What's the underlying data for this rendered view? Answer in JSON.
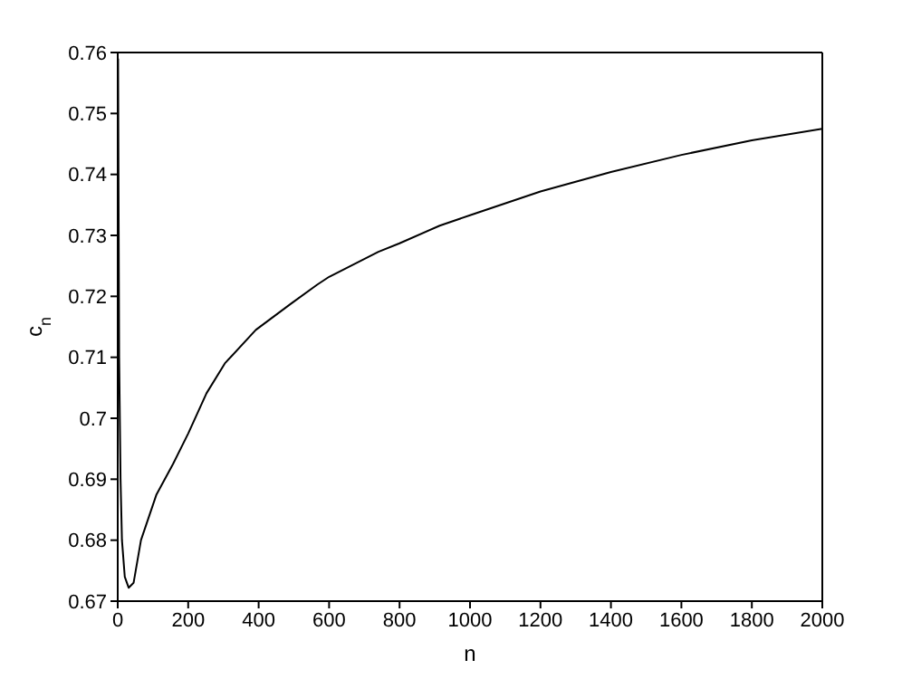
{
  "chart_data": {
    "type": "line",
    "xlabel": "n",
    "ylabel": "c$_{n}$",
    "x": [
      1,
      4,
      8,
      12,
      20,
      31,
      45,
      66,
      110,
      157,
      200,
      252,
      304,
      392,
      492,
      566,
      600,
      740,
      800,
      914,
      1000,
      1200,
      1400,
      1600,
      1800,
      2000
    ],
    "series": [
      {
        "color": "#000000",
        "values": [
          0.759,
          0.71,
          0.69,
          0.68,
          0.674,
          0.6722,
          0.673,
          0.68,
          0.6875,
          0.6925,
          0.6975,
          0.7041,
          0.709,
          0.7145,
          0.7188,
          0.7219,
          0.7232,
          0.7273,
          0.7287,
          0.7316,
          0.7333,
          0.7372,
          0.7404,
          0.7432,
          0.7456,
          0.7475
        ]
      }
    ],
    "xlim": [
      0,
      2000
    ],
    "xticks": [
      0,
      200,
      400,
      600,
      800,
      1000,
      1200,
      1400,
      1600,
      1800,
      2000
    ],
    "ylim": [
      0.67,
      0.76
    ],
    "yticks": [
      0.67,
      0.68,
      0.69,
      0.7,
      0.71,
      0.72,
      0.73,
      0.74,
      0.75,
      0.76
    ],
    "grid": false,
    "legend": false,
    "marker": "none",
    "line_style": "solid"
  }
}
